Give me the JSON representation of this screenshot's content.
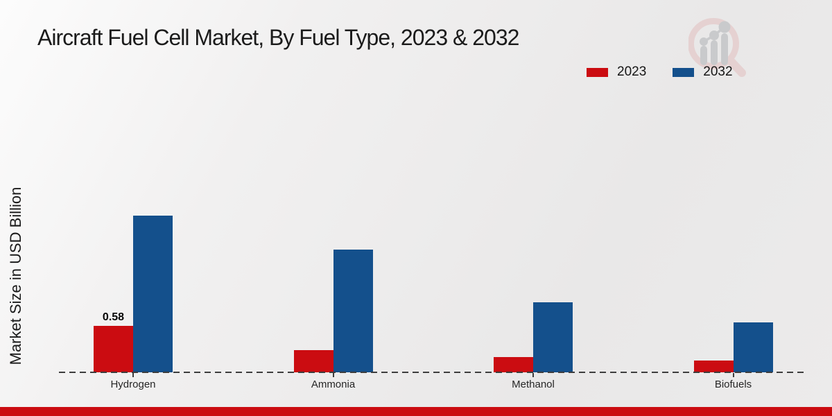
{
  "header": {
    "title": "Aircraft Fuel Cell Market, By Fuel Type, 2023 & 2032"
  },
  "chart_data": {
    "type": "bar",
    "title": "Aircraft Fuel Cell Market, By Fuel Type, 2023 & 2032",
    "categories": [
      "Hydrogen",
      "Ammonia",
      "Methanol",
      "Biofuels"
    ],
    "series": [
      {
        "name": "2023",
        "color": "#cb0c11",
        "values": [
          0.58,
          0.28,
          0.19,
          0.15
        ]
      },
      {
        "name": "2032",
        "color": "#14508c",
        "values": [
          1.95,
          1.53,
          0.87,
          0.62
        ]
      }
    ],
    "xlabel": "",
    "ylabel": "Market Size in USD Billion",
    "ylim": [
      0,
      2.2
    ],
    "grid": false,
    "y_axis_visible": false,
    "baseline_style": "dashed",
    "legend_position": "top-right",
    "bar_value_labels": [
      {
        "series": "2023",
        "category": "Hydrogen",
        "text": "0.58"
      }
    ]
  },
  "branding": {
    "logo_icon": "magnifier-bar-chart-logo",
    "accent_color": "#cb0c11",
    "logo_ring_color": "#e5d1d1",
    "logo_bar_color": "#c9cacc"
  }
}
